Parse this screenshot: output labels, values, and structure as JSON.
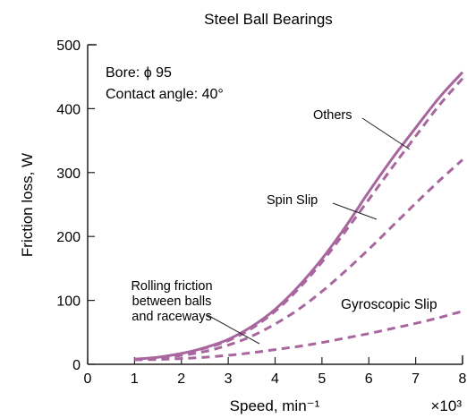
{
  "chart_data": {
    "type": "line",
    "title": "Steel Ball Bearings",
    "annotations": [
      "Bore: ϕ 95",
      "Contact angle: 40°"
    ],
    "xlabel": "Speed, min⁻¹",
    "x_multiplier": "×10³",
    "ylabel": "Friction loss, W",
    "xlim": [
      0,
      8
    ],
    "ylim": [
      0,
      500
    ],
    "x_ticks": [
      0,
      1,
      2,
      3,
      4,
      5,
      6,
      7,
      8
    ],
    "y_ticks": [
      0,
      100,
      200,
      300,
      400,
      500
    ],
    "grid": false,
    "colors": {
      "curve": "#a8669f",
      "axis": "#231f20"
    },
    "x": [
      1,
      1.5,
      2,
      2.5,
      3,
      3.5,
      4,
      4.5,
      5,
      5.5,
      6,
      6.5,
      7,
      7.5,
      8
    ],
    "series": [
      {
        "name": "Others",
        "style": "solid",
        "values": [
          8,
          11,
          17,
          26,
          39,
          59,
          86,
          122,
          165,
          215,
          270,
          322,
          370,
          417,
          457
        ]
      },
      {
        "name": "Spin Slip",
        "style": "dashed",
        "values": [
          8,
          10,
          16,
          25,
          37,
          56,
          83,
          118,
          160,
          208,
          258,
          308,
          357,
          405,
          447
        ]
      },
      {
        "name": "Gyroscopic Slip",
        "style": "dashed",
        "values": [
          8,
          10,
          14,
          20,
          30,
          44,
          63,
          86,
          114,
          146,
          180,
          216,
          252,
          287,
          320
        ]
      },
      {
        "name": "Rolling friction between balls and raceways",
        "style": "dashed",
        "values": [
          7,
          7.5,
          9,
          11,
          14,
          18,
          23,
          28,
          34,
          41,
          48,
          56,
          64,
          73,
          83
        ]
      }
    ],
    "labels": {
      "others": "Others",
      "spin": "Spin Slip",
      "gyro": "Gyroscopic Slip",
      "rolling": [
        "Rolling friction",
        "between balls",
        "and raceways"
      ]
    }
  }
}
